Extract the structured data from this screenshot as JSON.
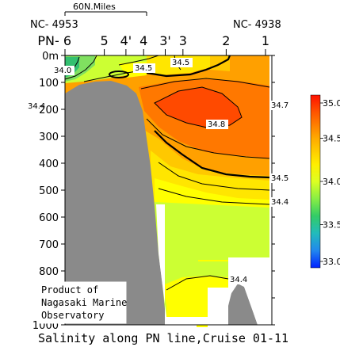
{
  "chart_data": {
    "type": "heatmap",
    "title": "Salinity along PN line,Cruise 01-11",
    "ylabel": "",
    "xlabel": "",
    "y_unit_label": "m",
    "ylim": [
      0,
      1000
    ],
    "y_ticks": [
      0,
      100,
      200,
      300,
      400,
      500,
      600,
      700,
      800,
      900,
      1000
    ],
    "stations": [
      {
        "label": "PN- 6",
        "x": 0
      },
      {
        "label": "5",
        "x": 1
      },
      {
        "label": "4'",
        "x": 1.55
      },
      {
        "label": "4",
        "x": 2
      },
      {
        "label": "3'",
        "x": 2.55
      },
      {
        "label": "3",
        "x": 3
      },
      {
        "label": "2",
        "x": 4.1
      },
      {
        "label": "1",
        "x": 5.1
      }
    ],
    "end_stations": {
      "left": "NC- 4953",
      "right": "NC- 4938"
    },
    "scale_bar_label": "60N.Miles",
    "colorbar": {
      "min": 33.0,
      "max": 35.0,
      "tick_labels": [
        "35.0",
        "34.5",
        "34.0",
        "33.5",
        "33.0"
      ]
    },
    "contour_labels": [
      "34.0",
      "34.5",
      "34.5",
      "34.4",
      "34.8",
      "34.7",
      "34.5",
      "34.4",
      "34.4"
    ],
    "note_lines": [
      "Product of",
      "Nagasaki Marine",
      "Observatory"
    ]
  },
  "colors": {
    "ocean_palette": [
      "#ff2a00",
      "#ff5a00",
      "#ff9a00",
      "#ffc800",
      "#ffe000",
      "#ffff00",
      "#ccff33",
      "#80e060",
      "#33c070"
    ],
    "bottom": "#8a8a8a",
    "colorbar": [
      "#ff0000",
      "#ff6600",
      "#ffaa00",
      "#ffdd00",
      "#ffff00",
      "#aaff44",
      "#44dd66",
      "#22ccaa",
      "#22aadd",
      "#1166ff",
      "#0022ff"
    ]
  }
}
